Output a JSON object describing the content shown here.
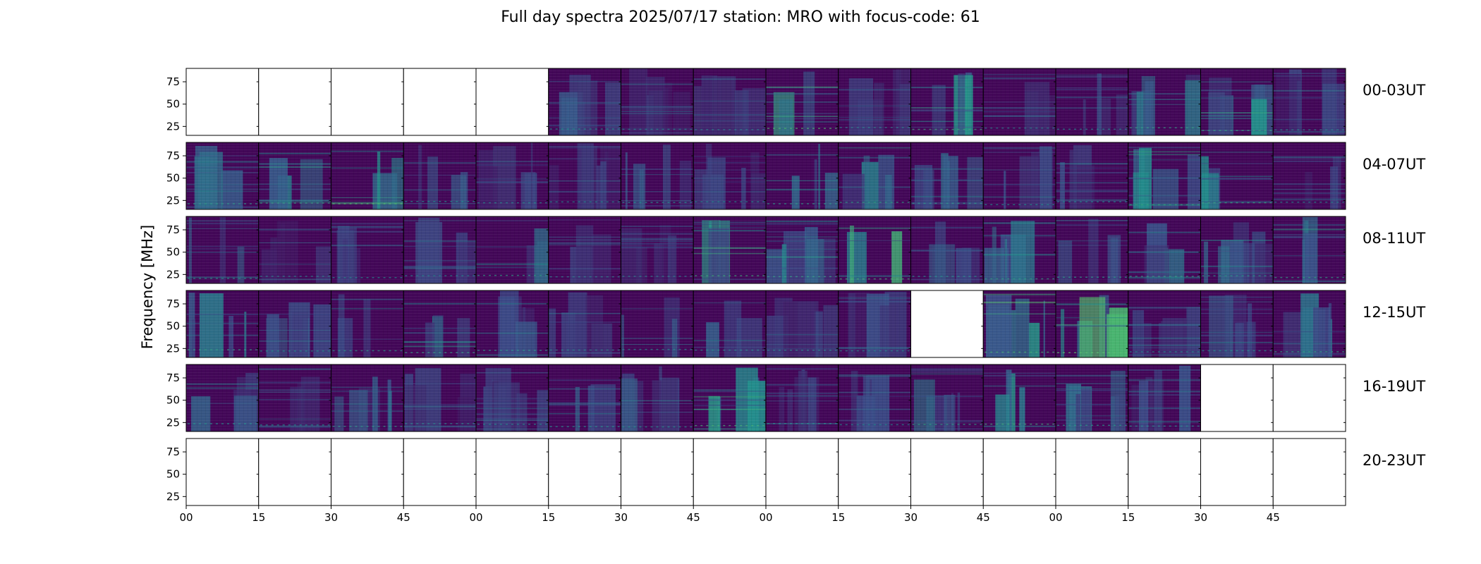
{
  "chart_data": {
    "type": "heatmap",
    "title": "Full day spectra 2025/07/17 station: MRO with focus-code: 61",
    "ylabel": "Frequency [MHz]",
    "ylim": [
      15,
      90
    ],
    "y_ticks": [
      "75",
      "50",
      "25"
    ],
    "x_tick_labels": [
      "00",
      "15",
      "30",
      "45",
      "00",
      "15",
      "30",
      "45",
      "00",
      "15",
      "30",
      "45",
      "00",
      "15",
      "30",
      "45"
    ],
    "colormap": "viridis",
    "colors": {
      "low": "#440154",
      "mid": "#21918c",
      "high": "#fde725",
      "background": "#3b1a6a"
    },
    "minutes_per_panel": 15,
    "rows": [
      {
        "label": "00-03UT",
        "panels": [
          0,
          0,
          0,
          0,
          0,
          1,
          1,
          1,
          1,
          1,
          1,
          1,
          1,
          1,
          1,
          1
        ],
        "intensity": [
          0,
          0,
          0,
          0,
          0,
          0.25,
          0.2,
          0.15,
          0.55,
          0.15,
          0.45,
          0.15,
          0.2,
          0.35,
          0.4,
          0.2
        ]
      },
      {
        "label": "04-07UT",
        "panels": [
          1,
          1,
          1,
          1,
          1,
          1,
          1,
          1,
          1,
          1,
          1,
          1,
          1,
          1,
          1,
          1
        ],
        "intensity": [
          0.3,
          0.35,
          0.55,
          0.25,
          0.2,
          0.2,
          0.25,
          0.2,
          0.3,
          0.35,
          0.3,
          0.25,
          0.2,
          0.4,
          0.4,
          0.2
        ]
      },
      {
        "label": "08-11UT",
        "panels": [
          1,
          1,
          1,
          1,
          1,
          1,
          1,
          1,
          1,
          1,
          1,
          1,
          1,
          1,
          1,
          1
        ],
        "intensity": [
          0.3,
          0.15,
          0.2,
          0.2,
          0.35,
          0.15,
          0.15,
          0.45,
          0.35,
          0.5,
          0.25,
          0.35,
          0.3,
          0.35,
          0.3,
          0.35
        ]
      },
      {
        "label": "12-15UT",
        "panels": [
          1,
          1,
          1,
          1,
          1,
          1,
          1,
          1,
          1,
          1,
          0,
          1,
          1,
          1,
          1,
          1
        ],
        "intensity": [
          0.35,
          0.25,
          0.3,
          0.35,
          0.3,
          0.2,
          0.25,
          0.25,
          0.2,
          0.2,
          0,
          0.5,
          0.6,
          0.2,
          0.25,
          0.35
        ]
      },
      {
        "label": "16-19UT",
        "panels": [
          1,
          1,
          1,
          1,
          1,
          1,
          1,
          1,
          1,
          1,
          1,
          1,
          1,
          1,
          0,
          0
        ],
        "intensity": [
          0.25,
          0.2,
          0.3,
          0.2,
          0.2,
          0.25,
          0.25,
          0.5,
          0.2,
          0.2,
          0.35,
          0.45,
          0.3,
          0.25,
          0,
          0
        ]
      },
      {
        "label": "20-23UT",
        "panels": [
          0,
          0,
          0,
          0,
          0,
          0,
          0,
          0,
          0,
          0,
          0,
          0,
          0,
          0,
          0,
          0
        ],
        "intensity": [
          0,
          0,
          0,
          0,
          0,
          0,
          0,
          0,
          0,
          0,
          0,
          0,
          0,
          0,
          0,
          0
        ]
      }
    ]
  }
}
